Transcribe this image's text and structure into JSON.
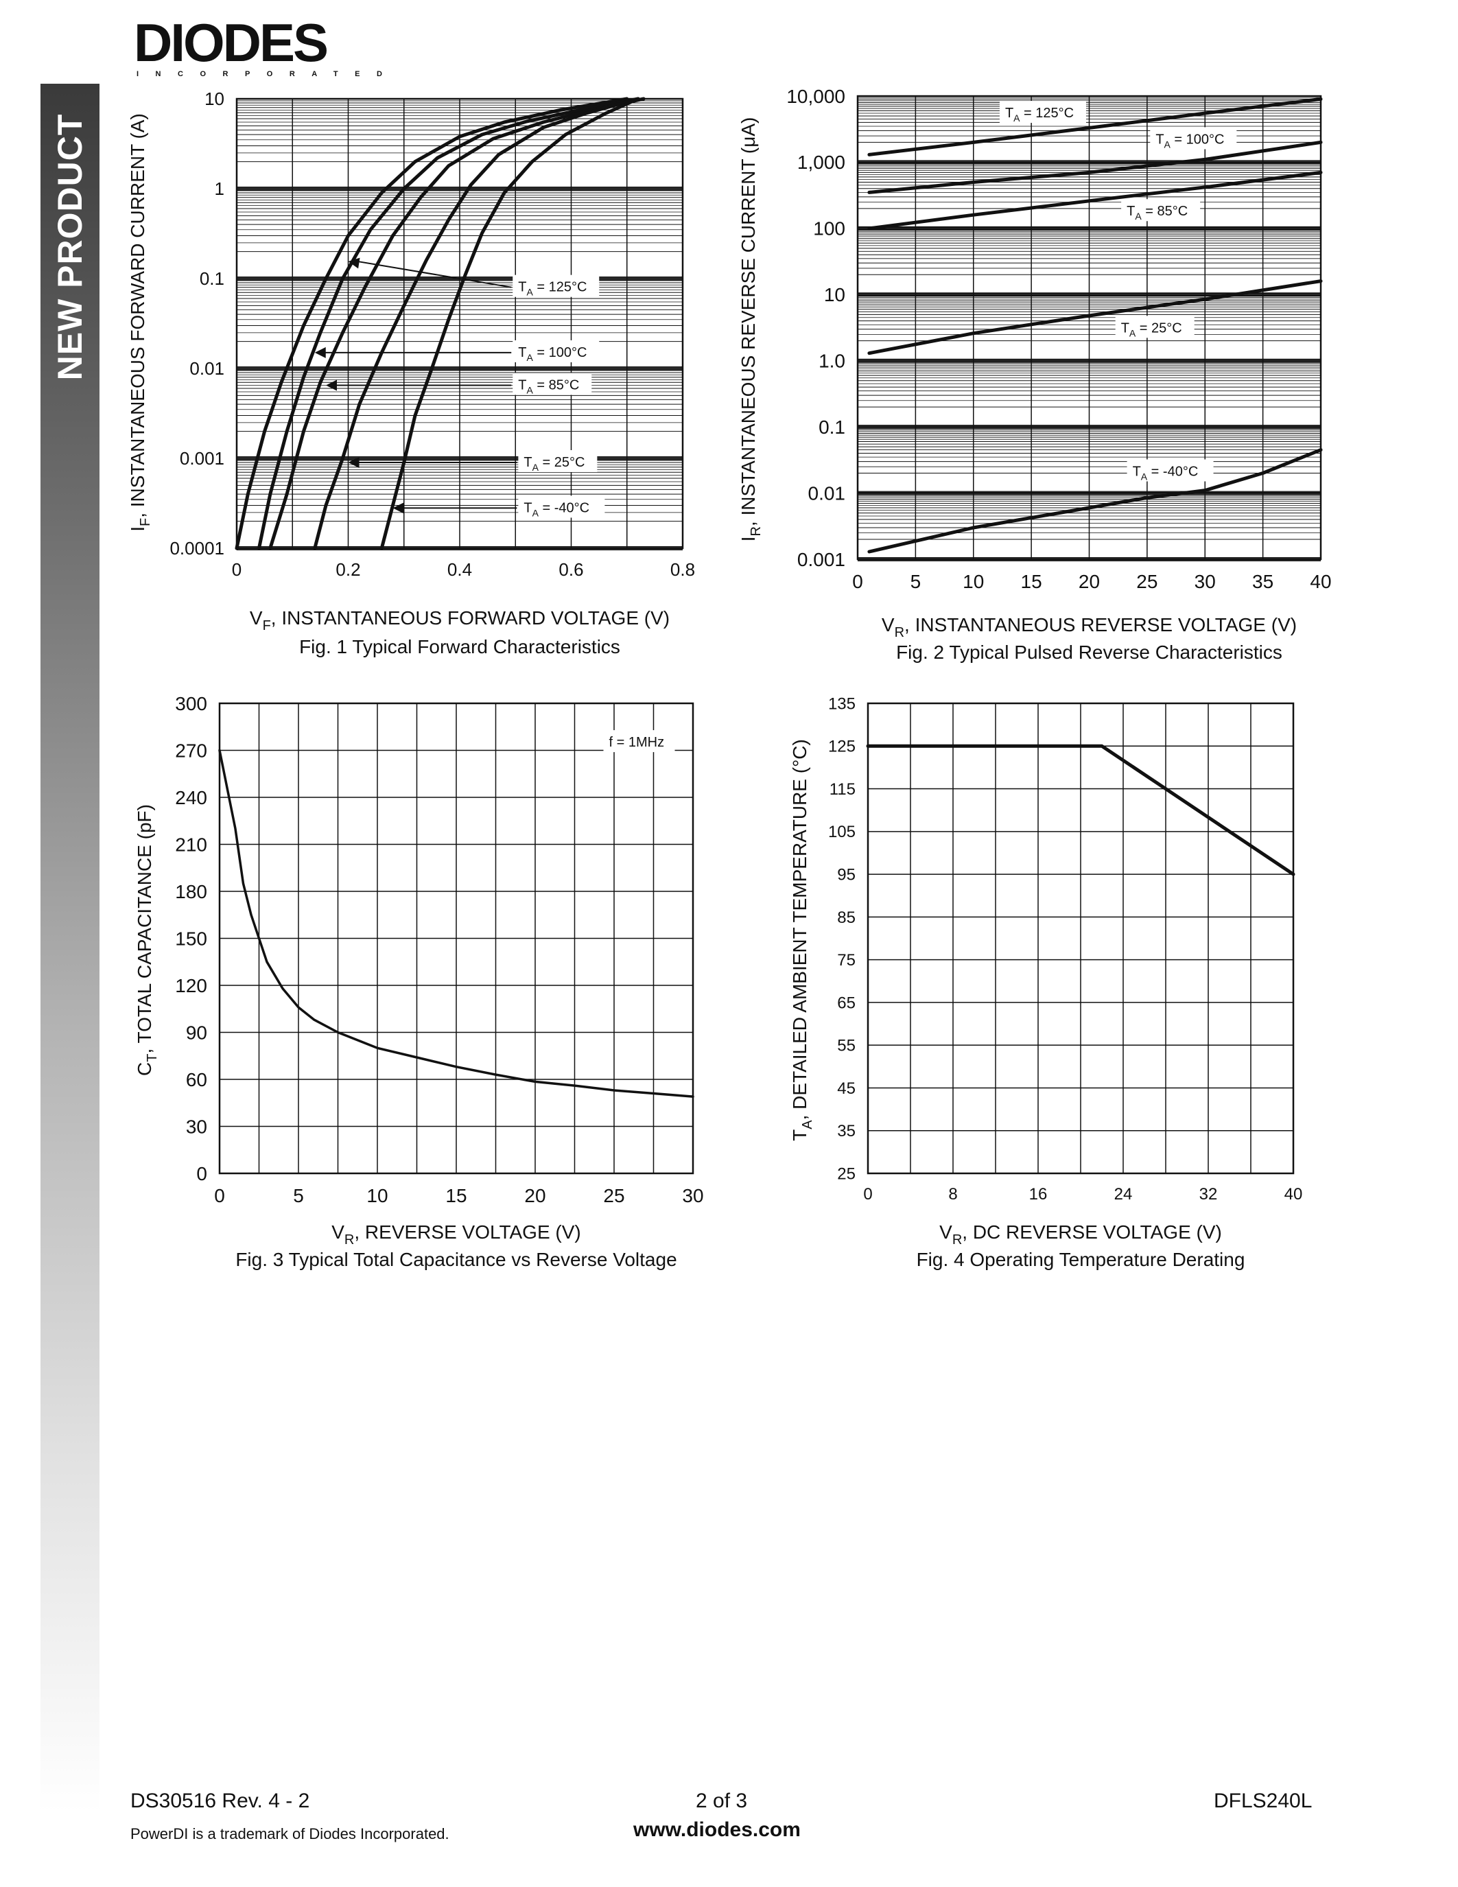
{
  "header": {
    "logo_text": "DIODES",
    "logo_subtext": "INCORPORATED"
  },
  "sidebar": {
    "label": "NEW PRODUCT"
  },
  "chart_data": [
    {
      "id": "fig1",
      "type": "line",
      "title": "Fig. 1  Typical Forward Characteristics",
      "xlabel": "V",
      "xlabel_sub": "F",
      "xlabel_rest": ", INSTANTANEOUS FORWARD VOLTAGE (V)",
      "ylabel": "I",
      "ylabel_sub": "F",
      "ylabel_rest": ", INSTANTANEOUS FORWARD CURRENT (A)",
      "yscale": "log",
      "xlim": [
        0,
        0.8
      ],
      "ylim": [
        0.0001,
        10
      ],
      "xticks": [
        0,
        0.2,
        0.4,
        0.6,
        0.8
      ],
      "xtick_labels": [
        "0",
        "0.2",
        "0.4",
        "0.6",
        "0.8"
      ],
      "yticks": [
        0.0001,
        0.001,
        0.01,
        0.1,
        1,
        10
      ],
      "ytick_labels": [
        "0.0001",
        "0.001",
        "0.01",
        "0.1",
        "1",
        "10"
      ],
      "grid": true,
      "series": [
        {
          "name": "TA = 125°C",
          "points": [
            [
              0.0,
              0.0001
            ],
            [
              0.02,
              0.0004
            ],
            [
              0.05,
              0.002
            ],
            [
              0.08,
              0.007
            ],
            [
              0.12,
              0.03
            ],
            [
              0.16,
              0.1
            ],
            [
              0.2,
              0.3
            ],
            [
              0.26,
              0.9
            ],
            [
              0.32,
              2.0
            ],
            [
              0.4,
              3.8
            ],
            [
              0.48,
              5.5
            ],
            [
              0.58,
              7.5
            ],
            [
              0.7,
              10
            ]
          ]
        },
        {
          "name": "TA = 100°C",
          "points": [
            [
              0.04,
              0.0001
            ],
            [
              0.06,
              0.0004
            ],
            [
              0.09,
              0.002
            ],
            [
              0.12,
              0.008
            ],
            [
              0.15,
              0.025
            ],
            [
              0.19,
              0.1
            ],
            [
              0.24,
              0.35
            ],
            [
              0.3,
              1.0
            ],
            [
              0.36,
              2.2
            ],
            [
              0.44,
              4.0
            ],
            [
              0.52,
              5.6
            ],
            [
              0.62,
              7.6
            ],
            [
              0.72,
              10
            ]
          ]
        },
        {
          "name": "TA = 85°C",
          "points": [
            [
              0.06,
              0.0001
            ],
            [
              0.09,
              0.0004
            ],
            [
              0.12,
              0.002
            ],
            [
              0.15,
              0.007
            ],
            [
              0.19,
              0.025
            ],
            [
              0.23,
              0.08
            ],
            [
              0.28,
              0.3
            ],
            [
              0.33,
              0.8
            ],
            [
              0.38,
              1.8
            ],
            [
              0.46,
              3.6
            ],
            [
              0.55,
              5.5
            ],
            [
              0.64,
              7.6
            ],
            [
              0.73,
              10
            ]
          ]
        },
        {
          "name": "TA = 25°C",
          "points": [
            [
              0.14,
              0.0001
            ],
            [
              0.16,
              0.0003
            ],
            [
              0.19,
              0.001
            ],
            [
              0.22,
              0.004
            ],
            [
              0.26,
              0.015
            ],
            [
              0.3,
              0.05
            ],
            [
              0.34,
              0.16
            ],
            [
              0.38,
              0.45
            ],
            [
              0.42,
              1.1
            ],
            [
              0.47,
              2.4
            ],
            [
              0.55,
              4.8
            ],
            [
              0.63,
              7.0
            ],
            [
              0.72,
              10
            ]
          ]
        },
        {
          "name": "TA = -40°C",
          "points": [
            [
              0.26,
              0.0001
            ],
            [
              0.28,
              0.0003
            ],
            [
              0.3,
              0.0009
            ],
            [
              0.32,
              0.003
            ],
            [
              0.35,
              0.01
            ],
            [
              0.38,
              0.035
            ],
            [
              0.41,
              0.11
            ],
            [
              0.44,
              0.32
            ],
            [
              0.48,
              0.9
            ],
            [
              0.53,
              2.0
            ],
            [
              0.59,
              4.0
            ],
            [
              0.66,
              6.8
            ],
            [
              0.72,
              10
            ]
          ]
        }
      ],
      "annotations": [
        {
          "name": "TA = 125°C",
          "text": "T",
          "sub": "A",
          "rest": " = 125°C",
          "x": 0.5,
          "y": 0.08,
          "arrow_to": [
            0.2,
            0.155
          ]
        },
        {
          "name": "TA = 100°C",
          "text": "T",
          "sub": "A",
          "rest": " = 100°C",
          "x": 0.5,
          "y": 0.015,
          "arrow_to": [
            0.14,
            0.015
          ]
        },
        {
          "name": "TA = 85°C",
          "text": "T",
          "sub": "A",
          "rest": " = 85°C",
          "x": 0.5,
          "y": 0.0065,
          "arrow_to": [
            0.16,
            0.0065
          ]
        },
        {
          "name": "TA = 25°C",
          "text": "T",
          "sub": "A",
          "rest": " = 25°C",
          "x": 0.51,
          "y": 0.0009,
          "arrow_to": [
            0.2,
            0.0009
          ]
        },
        {
          "name": "TA = -40°C",
          "text": "T",
          "sub": "A",
          "rest": " = -40°C",
          "x": 0.51,
          "y": 0.00028,
          "arrow_to": [
            0.28,
            0.00028
          ]
        }
      ]
    },
    {
      "id": "fig2",
      "type": "line",
      "title": "Fig. 2  Typical Pulsed Reverse Characteristics",
      "xlabel": "V",
      "xlabel_sub": "R",
      "xlabel_rest": ", INSTANTANEOUS REVERSE VOLTAGE (V)",
      "ylabel": "I",
      "ylabel_sub": "R",
      "ylabel_rest": ", INSTANTANEOUS REVERSE CURRENT (μA)",
      "yscale": "log",
      "xlim": [
        0,
        40
      ],
      "ylim": [
        0.001,
        10000
      ],
      "xticks": [
        0,
        5,
        10,
        15,
        20,
        25,
        30,
        35,
        40
      ],
      "xtick_labels": [
        "0",
        "5",
        "10",
        "15",
        "20",
        "25",
        "30",
        "35",
        "40"
      ],
      "yticks": [
        0.001,
        0.01,
        0.1,
        1,
        10,
        100,
        1000,
        10000
      ],
      "ytick_labels": [
        "0.001",
        "0.01",
        "0.1",
        "1.0",
        "10",
        "100",
        "1,000",
        "10,000"
      ],
      "grid": true,
      "series": [
        {
          "name": "TA = 125°C",
          "points": [
            [
              1,
              1300
            ],
            [
              10,
              2000
            ],
            [
              20,
              3300
            ],
            [
              30,
              5500
            ],
            [
              40,
              9000
            ]
          ]
        },
        {
          "name": "TA = 100°C",
          "points": [
            [
              1,
              350
            ],
            [
              10,
              500
            ],
            [
              20,
              700
            ],
            [
              30,
              1100
            ],
            [
              40,
              2000
            ]
          ]
        },
        {
          "name": "TA = 85°C",
          "points": [
            [
              1,
              100
            ],
            [
              10,
              160
            ],
            [
              20,
              260
            ],
            [
              30,
              420
            ],
            [
              40,
              700
            ]
          ]
        },
        {
          "name": "TA = 25°C",
          "points": [
            [
              1,
              1.3
            ],
            [
              10,
              2.6
            ],
            [
              20,
              4.8
            ],
            [
              30,
              8.5
            ],
            [
              40,
              16
            ]
          ]
        },
        {
          "name": "TA = -40°C",
          "points": [
            [
              1,
              0.0013
            ],
            [
              10,
              0.003
            ],
            [
              20,
              0.006
            ],
            [
              25,
              0.0085
            ],
            [
              30,
              0.011
            ],
            [
              35,
              0.02
            ],
            [
              40,
              0.045
            ]
          ]
        }
      ],
      "annotations": [
        {
          "name": "TA = 125°C",
          "text": "T",
          "sub": "A",
          "rest": " = 125°C",
          "x": 12.5,
          "y": 5500
        },
        {
          "name": "TA = 100°C",
          "text": "T",
          "sub": "A",
          "rest": " = 100°C",
          "x": 25.5,
          "y": 2200
        },
        {
          "name": "TA = 85°C",
          "text": "T",
          "sub": "A",
          "rest": " = 85°C",
          "x": 23,
          "y": 180
        },
        {
          "name": "TA = 25°C",
          "text": "T",
          "sub": "A",
          "rest": " = 25°C",
          "x": 22.5,
          "y": 3.1
        },
        {
          "name": "TA = -40°C",
          "text": "T",
          "sub": "A",
          "rest": " = -40°C",
          "x": 23.5,
          "y": 0.021
        }
      ]
    },
    {
      "id": "fig3",
      "type": "line",
      "title": "Fig. 3  Typical Total Capacitance vs Reverse Voltage",
      "xlabel": "V",
      "xlabel_sub": "R",
      "xlabel_rest": ", REVERSE VOLTAGE (V)",
      "ylabel": "C",
      "ylabel_sub": "T",
      "ylabel_rest": ", TOTAL CAPACITANCE (pF)",
      "yscale": "linear",
      "xlim": [
        0,
        30
      ],
      "ylim": [
        0,
        300
      ],
      "xticks": [
        0,
        5,
        10,
        15,
        20,
        25,
        30
      ],
      "xtick_labels": [
        "0",
        "5",
        "10",
        "15",
        "20",
        "25",
        "30"
      ],
      "yticks": [
        0,
        30,
        60,
        90,
        120,
        150,
        180,
        210,
        240,
        270,
        300
      ],
      "ytick_labels": [
        "0",
        "30",
        "60",
        "90",
        "120",
        "150",
        "180",
        "210",
        "240",
        "270",
        "300"
      ],
      "xgrid_step": 2.5,
      "grid": true,
      "series": [
        {
          "name": "",
          "points": [
            [
              0,
              270
            ],
            [
              0.5,
              245
            ],
            [
              1,
              220
            ],
            [
              1.5,
              185
            ],
            [
              2,
              165
            ],
            [
              2.5,
              150
            ],
            [
              3,
              135
            ],
            [
              4,
              118
            ],
            [
              5,
              106
            ],
            [
              6,
              98
            ],
            [
              7.5,
              90
            ],
            [
              10,
              80
            ],
            [
              12.5,
              74
            ],
            [
              15,
              68
            ],
            [
              17.5,
              63
            ],
            [
              20,
              58.5
            ],
            [
              22.5,
              56
            ],
            [
              25,
              53
            ],
            [
              27.5,
              51
            ],
            [
              30,
              49
            ]
          ]
        }
      ],
      "annotations": [
        {
          "name": "f = 1MHz",
          "text": "f = 1MHz",
          "x": 24.5,
          "y": 275
        }
      ]
    },
    {
      "id": "fig4",
      "type": "line",
      "title": "Fig. 4  Operating Temperature Derating",
      "xlabel": "V",
      "xlabel_sub": "R",
      "xlabel_rest": ", DC REVERSE VOLTAGE (V)",
      "ylabel": "T",
      "ylabel_sub": "A",
      "ylabel_rest": ", DETAILED AMBIENT TEMPERATURE (°C)",
      "yscale": "linear",
      "xlim": [
        0,
        40
      ],
      "ylim": [
        25,
        135
      ],
      "xticks": [
        0,
        8,
        16,
        24,
        32,
        40
      ],
      "xtick_labels": [
        "0",
        "8",
        "16",
        "24",
        "32",
        "40"
      ],
      "yticks": [
        25,
        35,
        45,
        55,
        65,
        75,
        85,
        95,
        105,
        115,
        125,
        135
      ],
      "ytick_labels": [
        "25",
        "35",
        "45",
        "55",
        "65",
        "75",
        "85",
        "95",
        "105",
        "115",
        "125",
        "135"
      ],
      "xgrid_step": 4,
      "grid": true,
      "series": [
        {
          "name": "",
          "points": [
            [
              0,
              125
            ],
            [
              22,
              125
            ],
            [
              40,
              95
            ]
          ]
        }
      ],
      "annotations": []
    }
  ],
  "footer": {
    "doc_id": "DS30516 Rev. 4 - 2",
    "page": "2 of 3",
    "part": "DFLS240L",
    "trademark": "PowerDI is a trademark of Diodes Incorporated.",
    "url": "www.diodes.com"
  }
}
